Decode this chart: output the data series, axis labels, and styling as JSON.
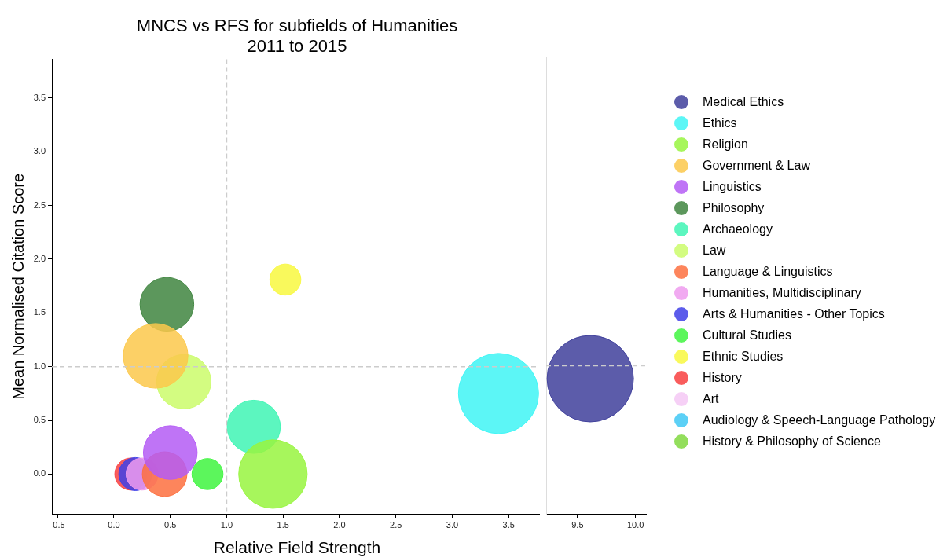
{
  "chart_data": [
    {
      "type": "bubble",
      "title": "MNCS vs RFS for subfields of Humanities",
      "subtitle": "2011 to 2015",
      "xlabel": "Relative Field Strength",
      "ylabel": "Mean Normalised Citation Score",
      "xlim": [
        -0.55,
        3.77
      ],
      "ylim": [
        -0.37,
        3.86
      ],
      "xticks": [
        -0.5,
        {
          "value": 0,
          "label": "0.0"
        },
        0.5,
        {
          "value": 1,
          "label": "1.0"
        },
        1.5,
        {
          "value": 2,
          "label": "2.0"
        },
        2.5,
        {
          "value": 3,
          "label": "3.0"
        },
        3.5
      ],
      "yticks": [
        {
          "value": 0,
          "label": "0.0"
        },
        0.5,
        {
          "value": 1,
          "label": "1.0"
        },
        1.5,
        {
          "value": 2,
          "label": "2.0"
        },
        2.5,
        {
          "value": 3,
          "label": "3.0"
        },
        3.5
      ],
      "legend": "right",
      "ref_lines": [
        {
          "axis": "x",
          "value": 1,
          "color": "#cccccc",
          "line_style": "dashed"
        },
        {
          "axis": "y",
          "value": 1,
          "color": "#cccccc",
          "line_style": "dashed"
        }
      ],
      "series": [
        {
          "name": "Medical Ethics",
          "color": "#3f3f9b",
          "x": [
            null
          ],
          "values": [
            null
          ],
          "sizes": [
            null
          ]
        },
        {
          "name": "Ethics",
          "color": "#3ff5f5",
          "x": [
            3.41
          ],
          "values": [
            0.75
          ],
          "sizes": [
            1
          ]
        },
        {
          "name": "Religion",
          "color": "#98f53f",
          "x": [
            1.41
          ],
          "values": [
            0.0
          ],
          "sizes": [
            0.73
          ]
        },
        {
          "name": "Government & Law",
          "color": "#fcc84b",
          "x": [
            0.37
          ],
          "values": [
            1.1
          ],
          "sizes": [
            0.65
          ]
        },
        {
          "name": "Linguistics",
          "color": "#b45cf5",
          "x": [
            0.5
          ],
          "values": [
            0.2
          ],
          "sizes": [
            0.45
          ]
        },
        {
          "name": "Philosophy",
          "color": "#3f853f",
          "x": [
            0.47
          ],
          "values": [
            1.58
          ],
          "sizes": [
            0.45
          ]
        },
        {
          "name": "Archaeology",
          "color": "#3ff5b4",
          "x": [
            1.24
          ],
          "values": [
            0.44
          ],
          "sizes": [
            0.44
          ]
        },
        {
          "name": "Law",
          "color": "#cbfb6b",
          "x": [
            0.62
          ],
          "values": [
            0.86
          ],
          "sizes": [
            0.46
          ]
        },
        {
          "name": "Language & Linguistics",
          "color": "#fd7040",
          "x": [
            0.45
          ],
          "values": [
            0.0
          ],
          "sizes": [
            0.31
          ]
        },
        {
          "name": "Humanities, Multidisciplinary",
          "color": "#ee9bee",
          "x": [
            0.25
          ],
          "values": [
            0.0
          ],
          "sizes": [
            0.16
          ]
        },
        {
          "name": "Arts & Humanities - Other Topics",
          "color": "#4040e8",
          "x": [
            0.19
          ],
          "values": [
            0.0
          ],
          "sizes": [
            0.17
          ]
        },
        {
          "name": "Cultural Studies",
          "color": "#40f540",
          "x": [
            0.83
          ],
          "values": [
            0.0
          ],
          "sizes": [
            0.15
          ]
        },
        {
          "name": "Ethnic Studies",
          "color": "#f8f840",
          "x": [
            1.52
          ],
          "values": [
            1.81
          ],
          "sizes": [
            0.15
          ]
        },
        {
          "name": "History",
          "color": "#f84040",
          "x": [
            0.15
          ],
          "values": [
            0.0
          ],
          "sizes": [
            0.16
          ]
        },
        {
          "name": "Art",
          "color": "#f5c8f5",
          "x": [
            null
          ],
          "values": [
            null
          ],
          "sizes": [
            null
          ]
        },
        {
          "name": "Audiology & Speech-Language Pathology",
          "color": "#40c8f5",
          "x": [
            null
          ],
          "values": [
            null
          ],
          "sizes": [
            null
          ]
        },
        {
          "name": "History & Philosophy of Science",
          "color": "#80d840",
          "x": [
            null
          ],
          "values": [
            null
          ],
          "sizes": [
            null
          ]
        }
      ]
    },
    {
      "type": "bubble",
      "xlim": [
        9.23,
        10.09
      ],
      "ylim": [
        -0.37,
        3.86
      ],
      "xticks": [
        9.5,
        {
          "value": 10,
          "label": "10.0"
        }
      ],
      "tick_labels": "x",
      "ref_lines": [
        {
          "axis": "y",
          "value": 1,
          "color": "#cccccc",
          "line_style": "dashed"
        }
      ],
      "series": [
        {
          "color": "#3f3f9b",
          "x": [
            9.61
          ],
          "values": [
            0.88
          ],
          "sizes": [
            1
          ]
        }
      ]
    }
  ]
}
